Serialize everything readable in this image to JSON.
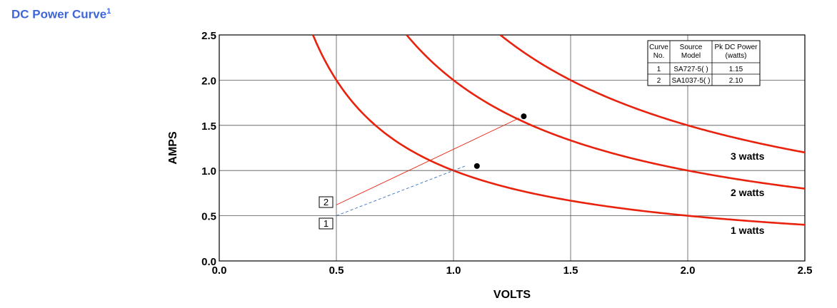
{
  "title": {
    "text": "DC Power Curve",
    "superscript": "1",
    "color": "#3f66d8"
  },
  "chart_data": {
    "type": "line",
    "title": "DC Power Curve",
    "xlabel": "VOLTS",
    "ylabel": "AMPS",
    "xlim": [
      0,
      2.5
    ],
    "ylim": [
      0,
      2.5
    ],
    "x_ticks": [
      "0.0",
      "0.5",
      "1.0",
      "1.5",
      "2.0",
      "2.5"
    ],
    "y_ticks": [
      "0.0",
      "0.5",
      "1.0",
      "1.5",
      "2.0",
      "2.5"
    ],
    "grid": true,
    "curve_color": "#e8220c",
    "power_curves": [
      {
        "label": "1 watts",
        "watts": 1,
        "x": [
          0.4,
          0.5,
          1.0,
          1.5,
          2.0,
          2.5
        ],
        "y": [
          2.5,
          2.0,
          1.0,
          0.667,
          0.5,
          0.4
        ]
      },
      {
        "label": "2 watts",
        "watts": 2,
        "x": [
          0.8,
          1.0,
          1.5,
          2.0,
          2.5
        ],
        "y": [
          2.5,
          2.0,
          1.333,
          1.0,
          0.8
        ]
      },
      {
        "label": "3 watts",
        "watts": 3,
        "x": [
          1.2,
          1.5,
          2.0,
          2.5
        ],
        "y": [
          2.5,
          2.0,
          1.5,
          1.2
        ]
      }
    ],
    "operating_points": [
      {
        "x": 1.1,
        "y": 1.05
      },
      {
        "x": 1.3,
        "y": 1.6
      }
    ],
    "load_lines": [
      {
        "marker": "1",
        "from": [
          0.5,
          0.5
        ],
        "to": [
          1.05,
          1.05
        ],
        "style": "dashed",
        "color": "#3a6fc4"
      },
      {
        "marker": "2",
        "from": [
          0.5,
          0.62
        ],
        "to": [
          1.28,
          1.58
        ],
        "style": "solid",
        "color": "#e8220c"
      }
    ],
    "legend_position": "top-right",
    "legend_table": {
      "headers": [
        [
          "Curve",
          "No."
        ],
        [
          "Source",
          "Model"
        ],
        [
          "Pk DC Power",
          "(watts)"
        ]
      ],
      "rows": [
        [
          "1",
          "SA727-5( )",
          "1.15"
        ],
        [
          "2",
          "SA1037-5( )",
          "2.10"
        ]
      ]
    }
  }
}
